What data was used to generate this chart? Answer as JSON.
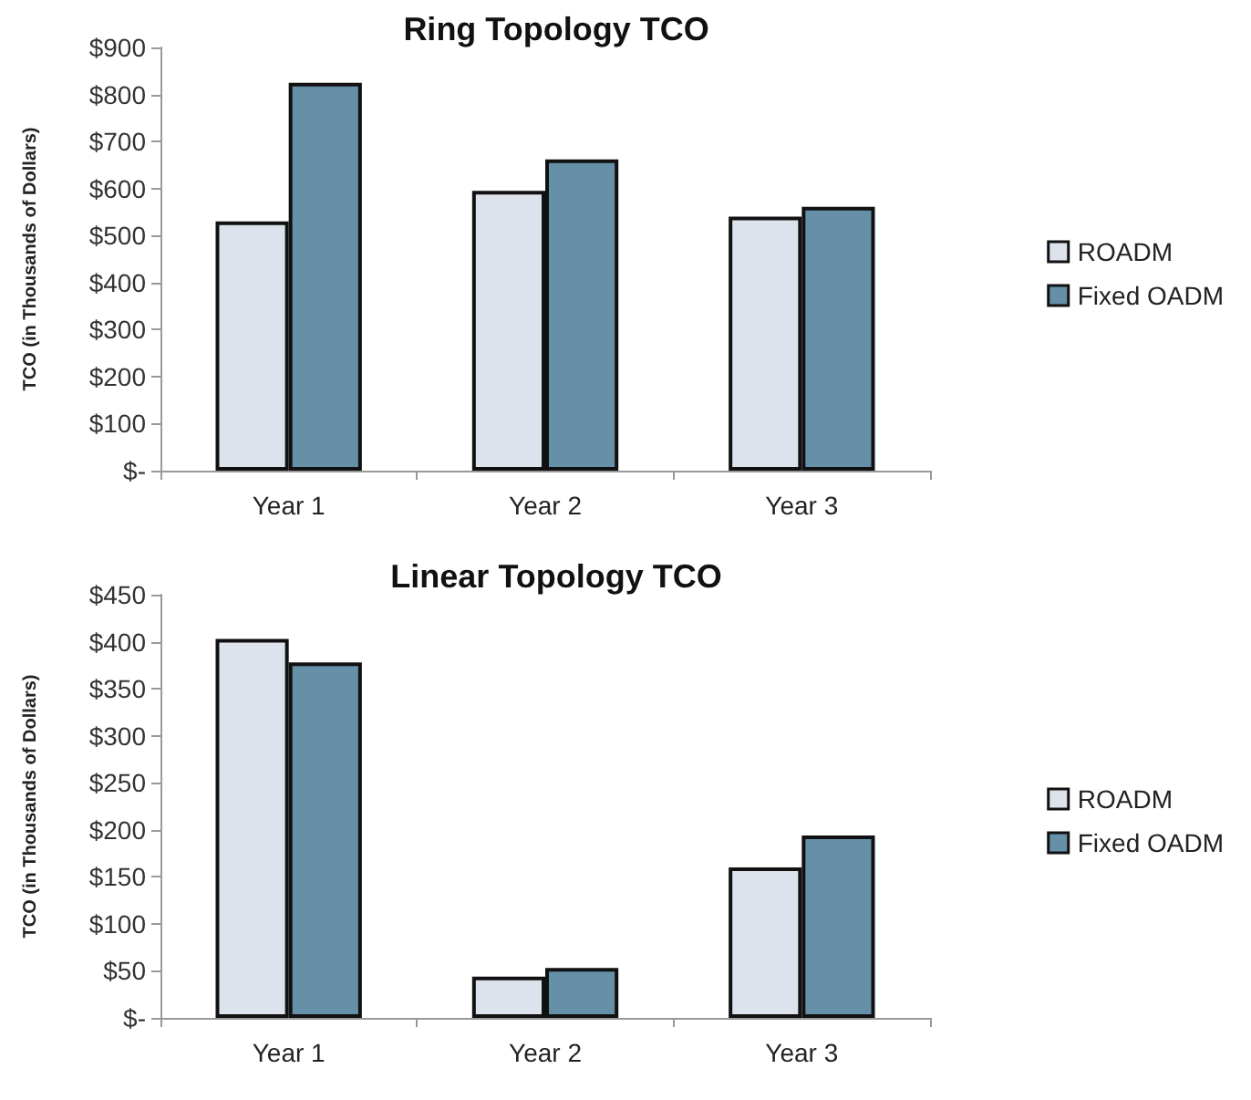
{
  "chart_data": [
    {
      "type": "bar",
      "title": "Ring Topology TCO",
      "ylabel": "TCO (in Thousands of Dollars)",
      "categories": [
        "Year 1",
        "Year 2",
        "Year 3"
      ],
      "series": [
        {
          "name": "ROADM",
          "color": "#dce3ec",
          "values": [
            530,
            595,
            540
          ]
        },
        {
          "name": "Fixed OADM",
          "color": "#6690a8",
          "values": [
            825,
            662,
            561
          ]
        }
      ],
      "ylim": [
        0,
        900
      ],
      "yticks": [
        {
          "value": 0,
          "label": "$-"
        },
        {
          "value": 100,
          "label": "$100"
        },
        {
          "value": 200,
          "label": "$200"
        },
        {
          "value": 300,
          "label": "$300"
        },
        {
          "value": 400,
          "label": "$400"
        },
        {
          "value": 500,
          "label": "$500"
        },
        {
          "value": 600,
          "label": "$600"
        },
        {
          "value": 700,
          "label": "$700"
        },
        {
          "value": 800,
          "label": "$800"
        },
        {
          "value": 900,
          "label": "$900"
        }
      ],
      "grid": false,
      "legend": "right"
    },
    {
      "type": "bar",
      "title": "Linear Topology TCO",
      "ylabel": "TCO (in Thousands of Dollars)",
      "categories": [
        "Year 1",
        "Year 2",
        "Year 3"
      ],
      "series": [
        {
          "name": "ROADM",
          "color": "#dce3ec",
          "values": [
            403,
            44,
            160
          ]
        },
        {
          "name": "Fixed OADM",
          "color": "#6690a8",
          "values": [
            378,
            53,
            194
          ]
        }
      ],
      "ylim": [
        0,
        450
      ],
      "yticks": [
        {
          "value": 0,
          "label": "$-"
        },
        {
          "value": 50,
          "label": "$50"
        },
        {
          "value": 100,
          "label": "$100"
        },
        {
          "value": 150,
          "label": "$150"
        },
        {
          "value": 200,
          "label": "$200"
        },
        {
          "value": 250,
          "label": "$250"
        },
        {
          "value": 300,
          "label": "$300"
        },
        {
          "value": 350,
          "label": "$350"
        },
        {
          "value": 400,
          "label": "$400"
        },
        {
          "value": 450,
          "label": "$450"
        }
      ],
      "grid": false,
      "legend": "right"
    }
  ]
}
